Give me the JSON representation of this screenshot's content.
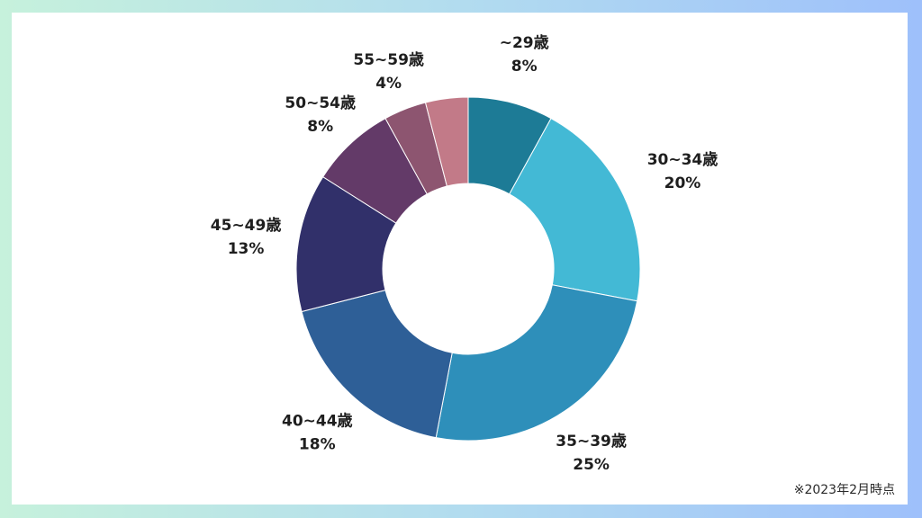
{
  "chart_data": {
    "type": "pie",
    "donut": true,
    "categories": [
      "~29歳",
      "30~34歳",
      "35~39歳",
      "40~44歳",
      "45~49歳",
      "50~54歳",
      "55~59歳"
    ],
    "values": [
      8,
      20,
      25,
      18,
      13,
      8,
      4
    ],
    "value_labels": [
      "8%",
      "20%",
      "25%",
      "18%",
      "13%",
      "8%",
      "4%"
    ],
    "colors": [
      "#1d7b96",
      "#43b9d5",
      "#2e8fba",
      "#2e5f97",
      "#31306a",
      "#633a68",
      "#8d5570",
      "#c27a88"
    ],
    "remainder_color": "#c27a88",
    "start": "12 o'clock",
    "direction": "clockwise"
  },
  "footnote": "※2023年2月時点"
}
